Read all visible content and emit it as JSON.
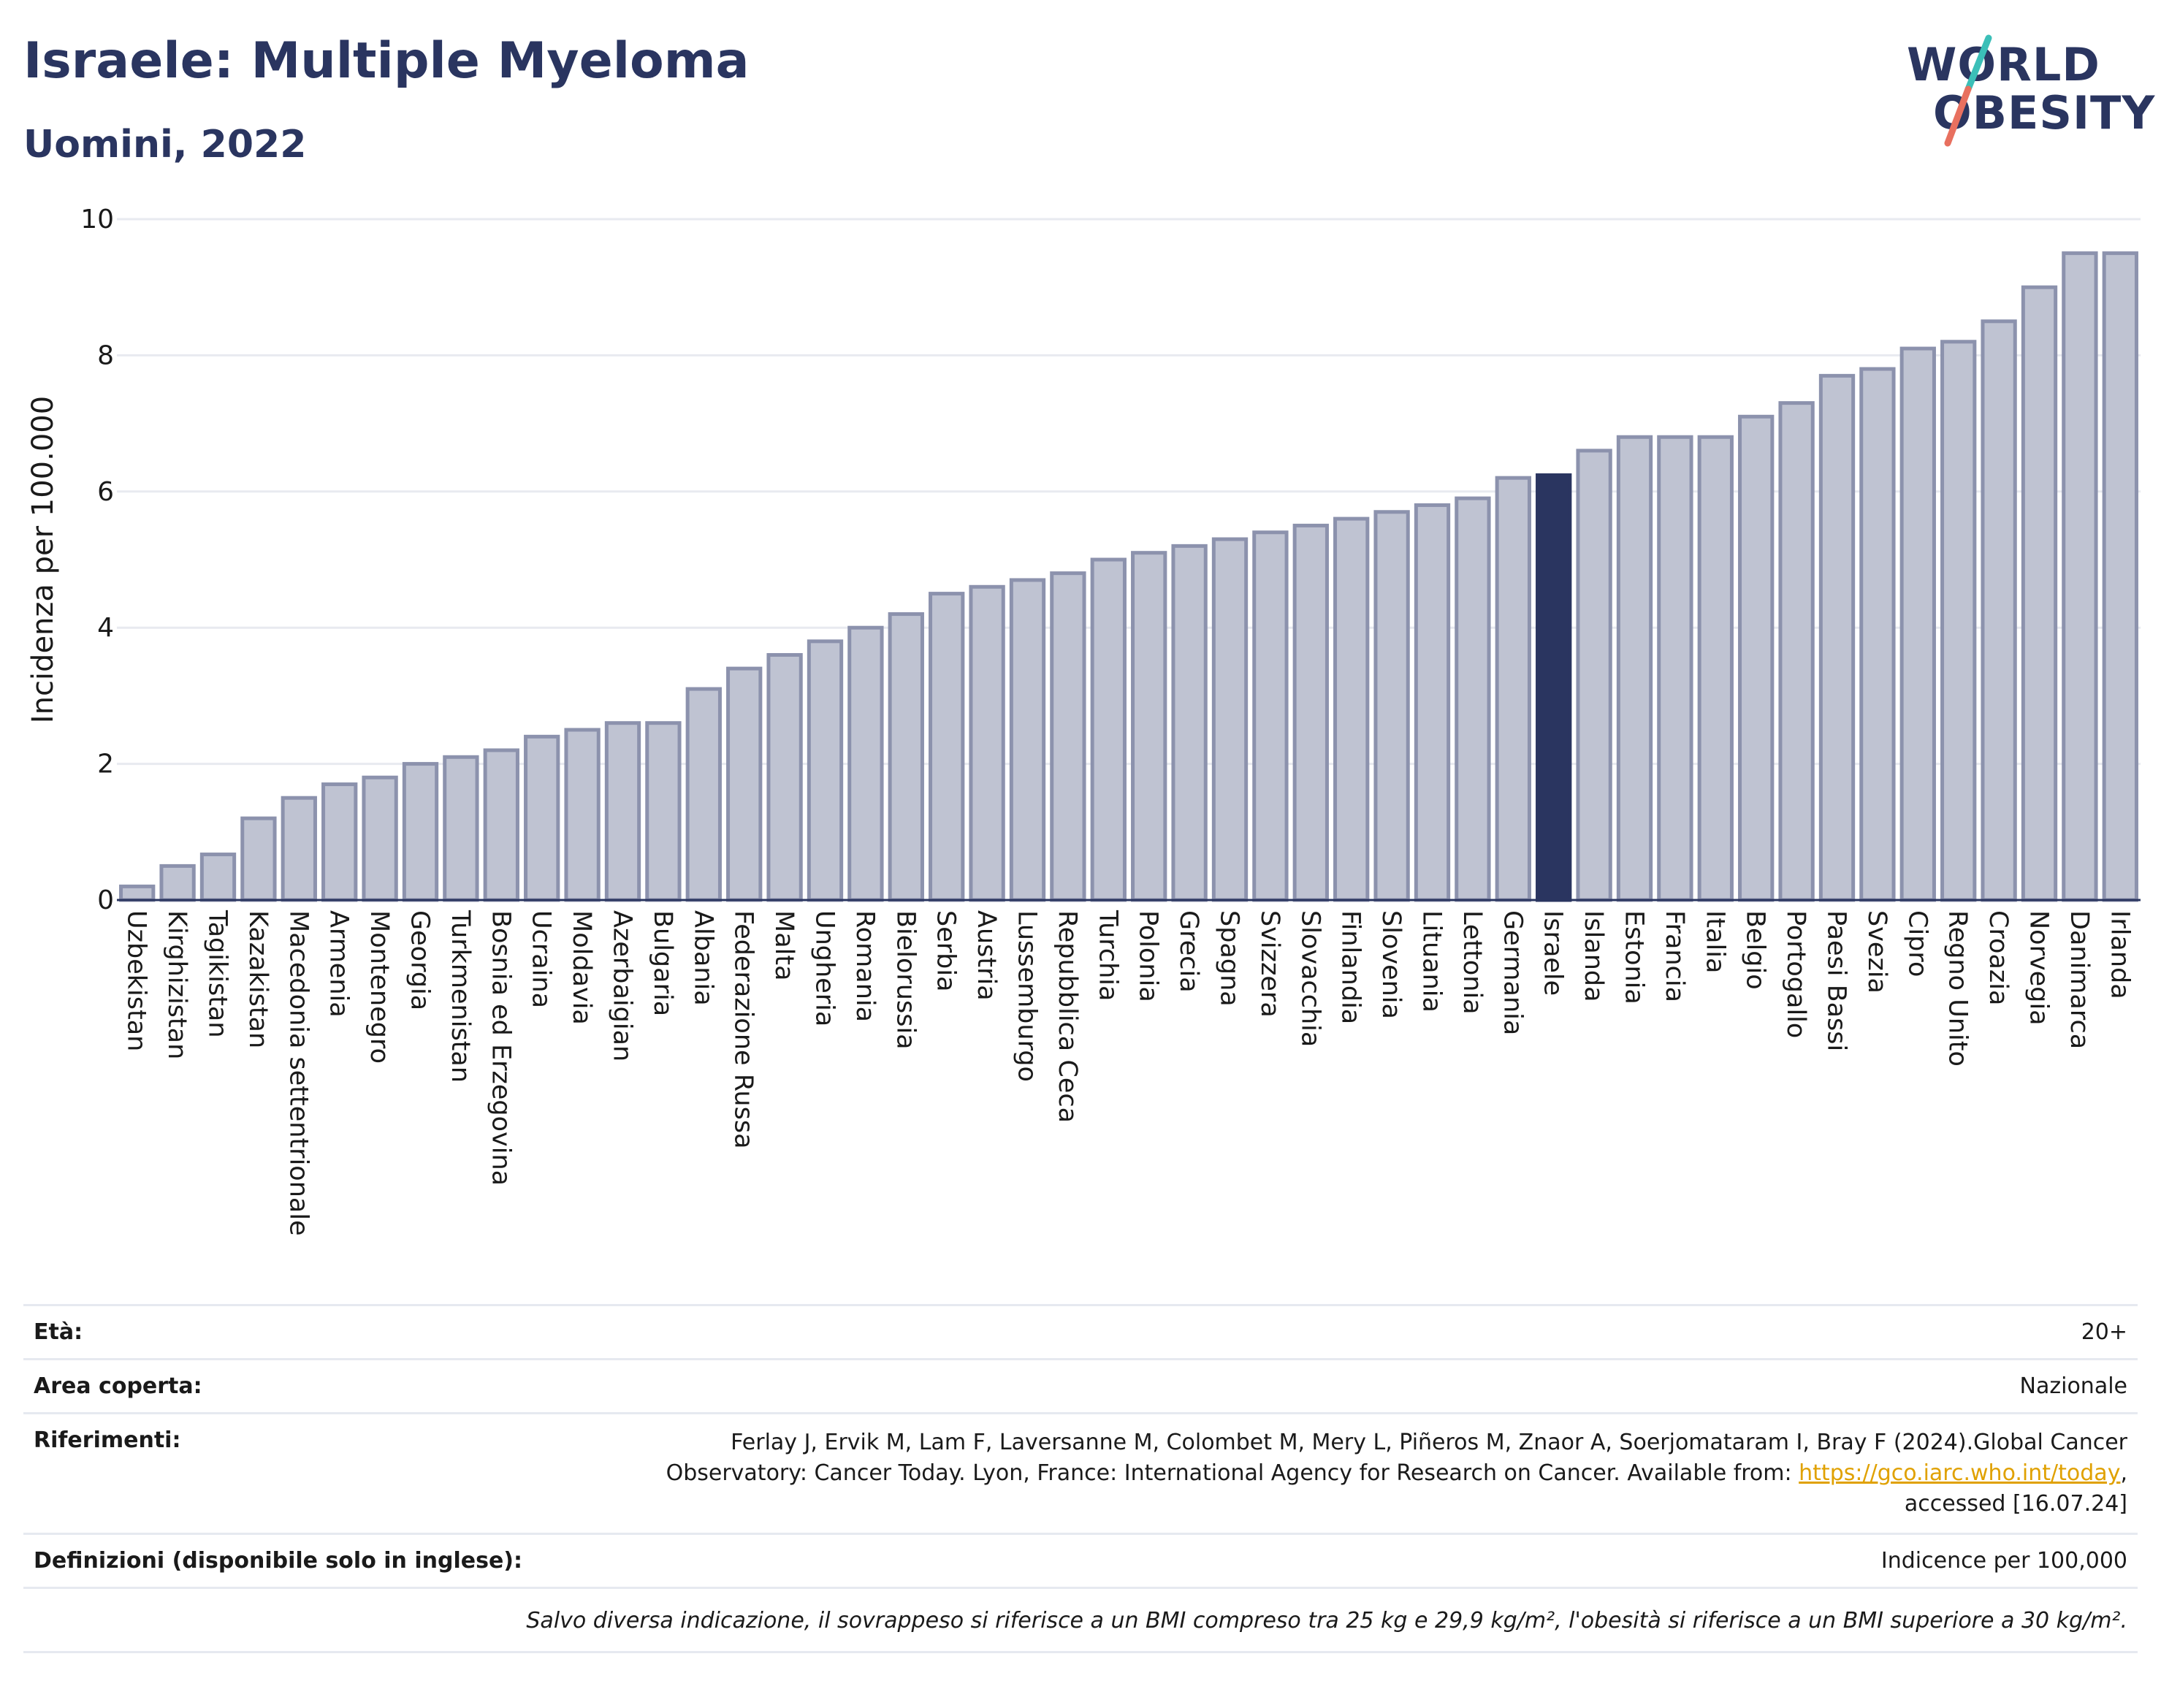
{
  "header": {
    "title": "Israele: Multiple Myeloma",
    "subtitle": "Uomini, 2022"
  },
  "logo": {
    "line1": "WORLD",
    "line2": "OBESITY",
    "colors": {
      "text": "#2a3560",
      "slash_top": "#3bbfb8",
      "slash_bottom": "#e8705f"
    }
  },
  "colors": {
    "bar": "#bfc3d2",
    "bar_border": "#8c92ad",
    "highlight": "#2a3560",
    "axis_text": "#1a1a1a",
    "grid": "#e8eaf0"
  },
  "chart_data": {
    "type": "bar",
    "title": "Israele: Multiple Myeloma",
    "subtitle": "Uomini, 2022",
    "ylabel": "Incidenza per 100.000",
    "xlabel": "",
    "ylim": [
      0,
      10
    ],
    "yticks": [
      0,
      2,
      4,
      6,
      8,
      10
    ],
    "grid": true,
    "highlight": "Israele",
    "categories": [
      "Uzbekistan",
      "Kirghizistan",
      "Tagikistan",
      "Kazakistan",
      "Macedonia settentrionale",
      "Armenia",
      "Montenegro",
      "Georgia",
      "Turkmenistan",
      "Bosnia ed Erzegovina",
      "Ucraina",
      "Moldavia",
      "Azerbaigian",
      "Bulgaria",
      "Albania",
      "Federazione Russa",
      "Malta",
      "Ungheria",
      "Romania",
      "Bielorussia",
      "Serbia",
      "Austria",
      "Lussemburgo",
      "Repubblica Ceca",
      "Turchia",
      "Polonia",
      "Grecia",
      "Spagna",
      "Svizzera",
      "Slovacchia",
      "Finlandia",
      "Slovenia",
      "Lituania",
      "Lettonia",
      "Germania",
      "Israele",
      "Islanda",
      "Estonia",
      "Francia",
      "Italia",
      "Belgio",
      "Portogallo",
      "Paesi Bassi",
      "Svezia",
      "Cipro",
      "Regno Unito",
      "Croazia",
      "Norvegia",
      "Danimarca",
      "Irlanda"
    ],
    "values": [
      0.2,
      0.5,
      0.67,
      1.2,
      1.5,
      1.7,
      1.8,
      2.0,
      2.1,
      2.2,
      2.4,
      2.5,
      2.6,
      2.6,
      3.1,
      3.4,
      3.6,
      3.8,
      4.0,
      4.2,
      4.5,
      4.6,
      4.7,
      4.8,
      5.0,
      5.1,
      5.2,
      5.3,
      5.4,
      5.5,
      5.6,
      5.7,
      5.8,
      5.9,
      6.2,
      6.24,
      6.6,
      6.8,
      6.8,
      6.8,
      7.1,
      7.3,
      7.7,
      7.8,
      8.1,
      8.2,
      8.5,
      9.0,
      9.5,
      9.5
    ]
  },
  "meta": {
    "age_label": "Età:",
    "age_value": "20+",
    "area_label": "Area coperta:",
    "area_value": "Nazionale",
    "refs_label": "Riferimenti:",
    "refs_text_line1": "Ferlay J, Ervik M, Lam F, Laversanne M, Colombet M, Mery L, Piñeros M, Znaor A, Soerjomataram I, Bray F (2024).Global Cancer",
    "refs_text_line2": "Observatory: Cancer Today. Lyon, France: International Agency for Research on Cancer. Available from: ",
    "refs_link": "https://gco.iarc.who.int/today",
    "refs_text_after_link": ",",
    "refs_text_line3": "accessed [16.07.24]",
    "defs_label": "Definizioni (disponibile solo in inglese):",
    "defs_value": "Indicence per 100,000",
    "note": "Salvo diversa indicazione, il sovrappeso si riferisce a un BMI compreso tra 25 kg e 29,9 kg/m², l'obesità si riferisce a un BMI superiore a 30 kg/m²."
  }
}
